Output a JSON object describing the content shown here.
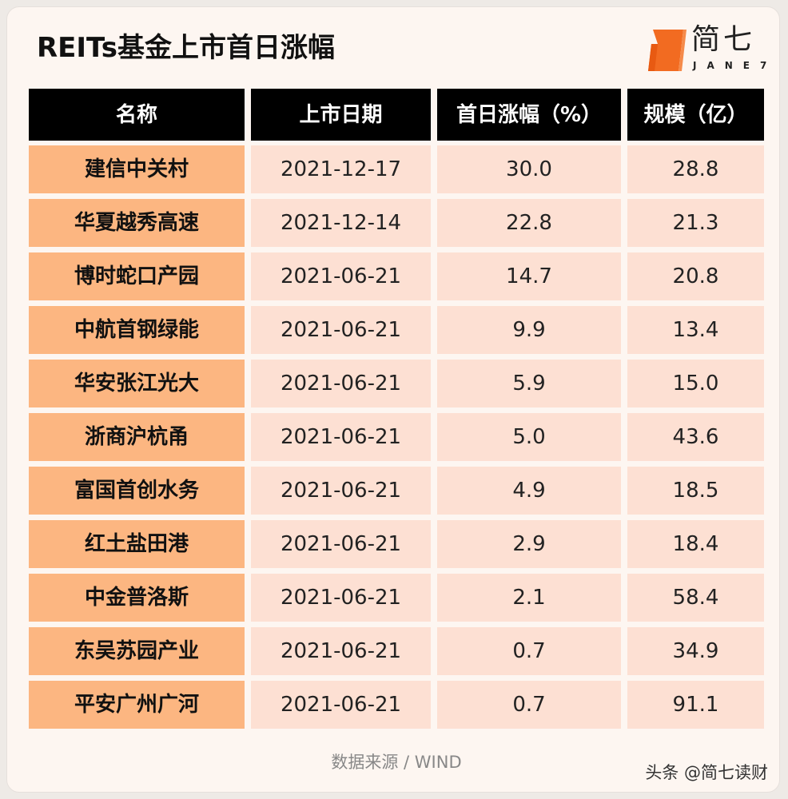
{
  "title": "REITs基金上市首日涨幅",
  "logo": {
    "text": "简七",
    "sub": "JANE7",
    "color": "#f26b21"
  },
  "table": {
    "headers": [
      "名称",
      "上市日期",
      "首日涨幅（%）",
      "规模（亿）"
    ],
    "rows": [
      [
        "建信中关村",
        "2021-12-17",
        "30.0",
        "28.8"
      ],
      [
        "华夏越秀高速",
        "2021-12-14",
        "22.8",
        "21.3"
      ],
      [
        "博时蛇口产园",
        "2021-06-21",
        "14.7",
        "20.8"
      ],
      [
        "中航首钢绿能",
        "2021-06-21",
        "9.9",
        "13.4"
      ],
      [
        "华安张江光大",
        "2021-06-21",
        "5.9",
        "15.0"
      ],
      [
        "浙商沪杭甬",
        "2021-06-21",
        "5.0",
        "43.6"
      ],
      [
        "富国首创水务",
        "2021-06-21",
        "4.9",
        "18.5"
      ],
      [
        "红土盐田港",
        "2021-06-21",
        "2.9",
        "18.4"
      ],
      [
        "中金普洛斯",
        "2021-06-21",
        "2.1",
        "58.4"
      ],
      [
        "东吴苏园产业",
        "2021-06-21",
        "0.7",
        "34.9"
      ],
      [
        "平安广州广河",
        "2021-06-21",
        "0.7",
        "91.1"
      ]
    ]
  },
  "source": "数据来源 / WIND",
  "watermark": "头条 @简七读财",
  "colors": {
    "header": "#000000",
    "name_cell": "#fcb681",
    "value_cell": "#fde0d3",
    "background": "#fdf6f1"
  }
}
